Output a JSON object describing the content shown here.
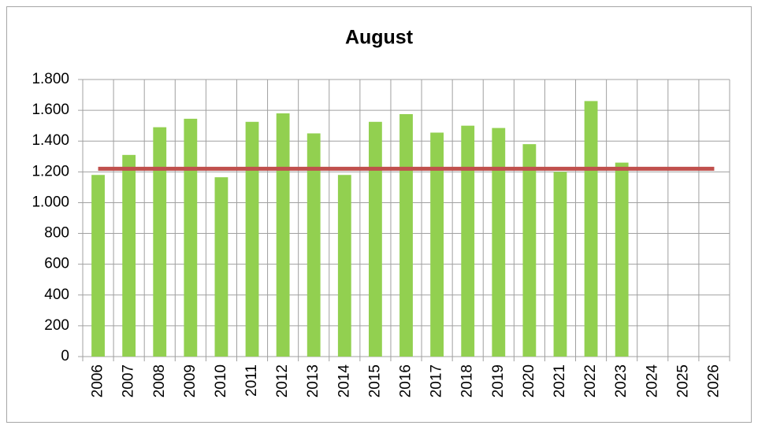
{
  "chart_data": {
    "type": "bar",
    "title": "August",
    "categories": [
      "2006",
      "2007",
      "2008",
      "2009",
      "2010",
      "2011",
      "2012",
      "2013",
      "2014",
      "2015",
      "2016",
      "2017",
      "2018",
      "2019",
      "2020",
      "2021",
      "2022",
      "2023",
      "2024",
      "2025",
      "2026"
    ],
    "series": [
      {
        "type": "bar",
        "color": "#92d050",
        "values": [
          1180,
          1310,
          1490,
          1545,
          1165,
          1525,
          1580,
          1450,
          1180,
          1525,
          1575,
          1455,
          1500,
          1485,
          1380,
          1200,
          1660,
          1260,
          null,
          null,
          null
        ]
      },
      {
        "type": "line",
        "color": "#c0504d",
        "values": [
          1220,
          1220,
          1220,
          1220,
          1220,
          1220,
          1220,
          1220,
          1220,
          1220,
          1220,
          1220,
          1220,
          1220,
          1220,
          1220,
          1220,
          1220,
          1220,
          1220,
          1220
        ]
      }
    ],
    "ylim": [
      0,
      1800
    ],
    "yticks": [
      0,
      200,
      400,
      600,
      800,
      {
        "value": 1000,
        "label": "1.000"
      },
      {
        "value": 1200,
        "label": "1.200"
      },
      {
        "value": 1400,
        "label": "1.400"
      },
      {
        "value": 1600,
        "label": "1.600"
      },
      {
        "value": 1800,
        "label": "1.800"
      }
    ],
    "grid": true
  }
}
